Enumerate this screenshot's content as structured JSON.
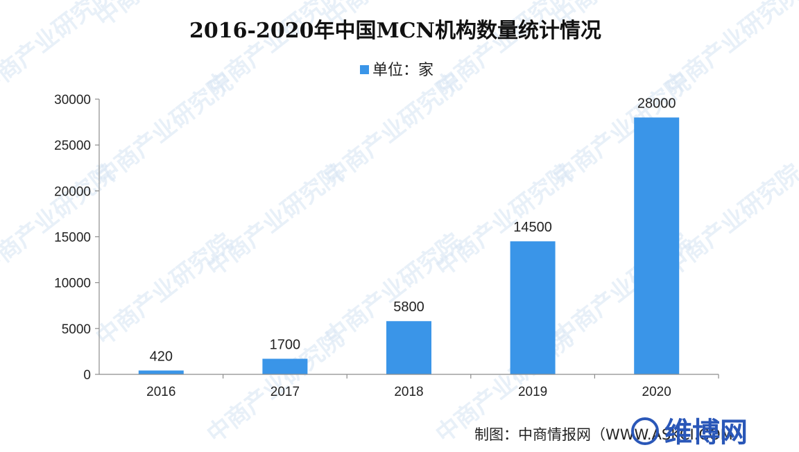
{
  "watermark": "中商产业研究院",
  "corner_logo": {
    "text": "维博网",
    "color": "#2a57b8"
  },
  "source": "制图：中商情报网（WWW.ASKCI.COM）",
  "chart_data": {
    "type": "bar",
    "title": "2016-2020年中国MCN机构数量统计情况",
    "legend": {
      "entries": [
        "单位：家"
      ],
      "placement": "top-center"
    },
    "categories": [
      "2016",
      "2017",
      "2018",
      "2019",
      "2020"
    ],
    "series": [
      {
        "name": "单位：家",
        "values": [
          420,
          1700,
          5800,
          14500,
          28000
        ],
        "color": "#3a95e8"
      }
    ],
    "data_labels": [
      "420",
      "1700",
      "5800",
      "14500",
      "28000"
    ],
    "yticks": [
      0,
      5000,
      10000,
      15000,
      20000,
      25000,
      30000
    ],
    "ylim": [
      0,
      30000
    ],
    "xlabel": "",
    "ylabel": "",
    "grid": false
  }
}
